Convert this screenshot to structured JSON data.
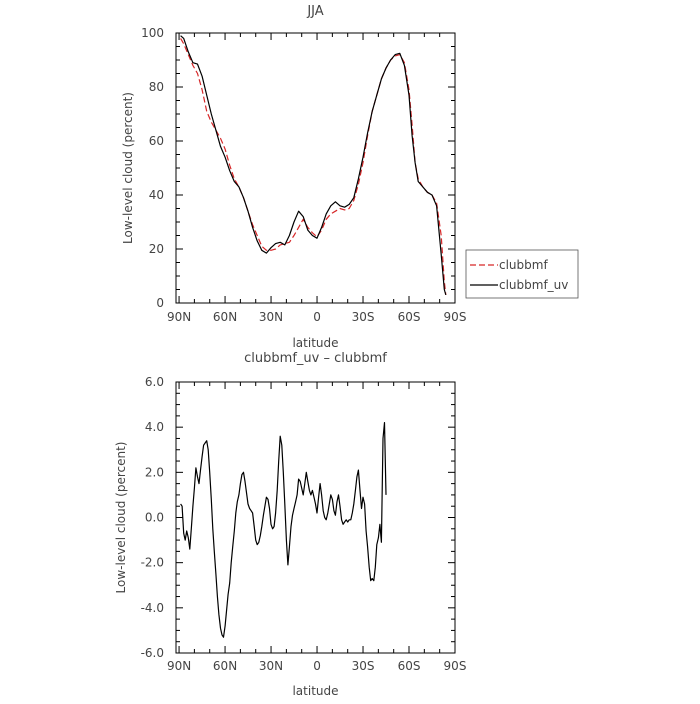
{
  "chart_data": [
    {
      "type": "line",
      "title": "JJA",
      "xlabel": "latitude",
      "ylabel": "Low-level cloud (percent)",
      "x_ticks": [
        {
          "value": -90,
          "label": "90N"
        },
        {
          "value": -60,
          "label": "60N"
        },
        {
          "value": -30,
          "label": "30N"
        },
        {
          "value": 0,
          "label": "0"
        },
        {
          "value": 30,
          "label": "30S"
        },
        {
          "value": 60,
          "label": "60S"
        },
        {
          "value": 90,
          "label": "90S"
        }
      ],
      "y_ticks": [
        {
          "value": 0,
          "label": "0"
        },
        {
          "value": 20,
          "label": "20"
        },
        {
          "value": 40,
          "label": "40"
        },
        {
          "value": 60,
          "label": "60"
        },
        {
          "value": 80,
          "label": "80"
        },
        {
          "value": 100,
          "label": "100"
        }
      ],
      "xlim": [
        -92,
        90
      ],
      "ylim": [
        0,
        100
      ],
      "legend_position": "right-outside",
      "series": [
        {
          "name": "clubbmf",
          "color": "#d62728",
          "dash": "dashed",
          "points": [
            [
              -89,
              98
            ],
            [
              -87,
              96
            ],
            [
              -84,
              92
            ],
            [
              -81,
              88
            ],
            [
              -78,
              85
            ],
            [
              -75,
              79
            ],
            [
              -72,
              71
            ],
            [
              -69,
              67
            ],
            [
              -66,
              64
            ],
            [
              -63,
              61
            ],
            [
              -60,
              57
            ],
            [
              -57,
              51
            ],
            [
              -54,
              46
            ],
            [
              -51,
              43
            ],
            [
              -48,
              39
            ],
            [
              -45,
              34
            ],
            [
              -42,
              29
            ],
            [
              -39,
              25
            ],
            [
              -36,
              21
            ],
            [
              -33,
              19.5
            ],
            [
              -30,
              19.5
            ],
            [
              -27,
              20
            ],
            [
              -24,
              21.5
            ],
            [
              -21,
              22
            ],
            [
              -18,
              22.5
            ],
            [
              -15,
              25
            ],
            [
              -12,
              28
            ],
            [
              -9,
              31
            ],
            [
              -6,
              28
            ],
            [
              -3,
              26
            ],
            [
              0,
              24.5
            ],
            [
              3,
              27
            ],
            [
              6,
              31
            ],
            [
              9,
              33
            ],
            [
              12,
              34
            ],
            [
              15,
              35
            ],
            [
              18,
              34.5
            ],
            [
              21,
              35
            ],
            [
              24,
              38
            ],
            [
              27,
              44
            ],
            [
              30,
              52
            ],
            [
              33,
              62
            ],
            [
              36,
              71
            ],
            [
              39,
              77
            ],
            [
              42,
              83
            ],
            [
              45,
              87
            ],
            [
              48,
              90
            ],
            [
              51,
              91.5
            ],
            [
              54,
              92
            ],
            [
              57,
              89
            ],
            [
              60,
              79
            ],
            [
              62,
              66
            ],
            [
              64,
              52
            ],
            [
              66,
              46
            ],
            [
              69,
              43
            ],
            [
              72,
              41
            ],
            [
              75,
              40
            ],
            [
              78,
              37
            ],
            [
              81,
              25
            ],
            [
              83,
              8
            ],
            [
              84,
              3
            ]
          ]
        },
        {
          "name": "clubbmf_uv",
          "color": "#000000",
          "dash": "solid",
          "points": [
            [
              -89,
              99
            ],
            [
              -87,
              98
            ],
            [
              -84,
              93
            ],
            [
              -81,
              89
            ],
            [
              -78,
              88.5
            ],
            [
              -75,
              84
            ],
            [
              -72,
              77
            ],
            [
              -69,
              70
            ],
            [
              -66,
              64
            ],
            [
              -63,
              58
            ],
            [
              -60,
              54
            ],
            [
              -57,
              49
            ],
            [
              -54,
              45
            ],
            [
              -51,
              43
            ],
            [
              -48,
              39
            ],
            [
              -45,
              34
            ],
            [
              -42,
              28
            ],
            [
              -39,
              23
            ],
            [
              -36,
              19.5
            ],
            [
              -33,
              18.5
            ],
            [
              -30,
              20.5
            ],
            [
              -27,
              22
            ],
            [
              -24,
              22.5
            ],
            [
              -21,
              21.5
            ],
            [
              -18,
              25
            ],
            [
              -15,
              30
            ],
            [
              -12,
              34
            ],
            [
              -9,
              32
            ],
            [
              -6,
              27
            ],
            [
              -3,
              25
            ],
            [
              0,
              24
            ],
            [
              3,
              28
            ],
            [
              6,
              33
            ],
            [
              9,
              36
            ],
            [
              12,
              37.5
            ],
            [
              15,
              36
            ],
            [
              18,
              35.5
            ],
            [
              21,
              36.5
            ],
            [
              24,
              39
            ],
            [
              27,
              46
            ],
            [
              30,
              54
            ],
            [
              33,
              63
            ],
            [
              36,
              71
            ],
            [
              39,
              77
            ],
            [
              42,
              83
            ],
            [
              45,
              87
            ],
            [
              48,
              90
            ],
            [
              51,
              92
            ],
            [
              54,
              92.5
            ],
            [
              57,
              88
            ],
            [
              60,
              77
            ],
            [
              62,
              62
            ],
            [
              64,
              52
            ],
            [
              66,
              45
            ],
            [
              69,
              43
            ],
            [
              72,
              41
            ],
            [
              75,
              40
            ],
            [
              78,
              36
            ],
            [
              81,
              18
            ],
            [
              83,
              5
            ],
            [
              84,
              3
            ]
          ]
        }
      ]
    },
    {
      "type": "line",
      "title": "clubbmf_uv – clubbmf",
      "xlabel": "latitude",
      "ylabel": "Low-level cloud (percent)",
      "x_ticks": [
        {
          "value": -90,
          "label": "90N"
        },
        {
          "value": -60,
          "label": "60N"
        },
        {
          "value": -30,
          "label": "30N"
        },
        {
          "value": 0,
          "label": "0"
        },
        {
          "value": 30,
          "label": "30S"
        },
        {
          "value": 60,
          "label": "60S"
        },
        {
          "value": 90,
          "label": "90S"
        }
      ],
      "y_ticks": [
        {
          "value": -6,
          "label": "-6.0"
        },
        {
          "value": -4,
          "label": "-4.0"
        },
        {
          "value": -2,
          "label": "-2.0"
        },
        {
          "value": 0,
          "label": "0.0"
        },
        {
          "value": 2,
          "label": "2.0"
        },
        {
          "value": 4,
          "label": "4.0"
        },
        {
          "value": 6,
          "label": "6.0"
        }
      ],
      "xlim": [
        -92,
        90
      ],
      "ylim": [
        -6,
        6
      ],
      "series": [
        {
          "color": "#000000",
          "dash": "solid",
          "points": [
            [
              -89,
              0.6
            ],
            [
              -88,
              0.5
            ],
            [
              -87,
              -0.7
            ],
            [
              -86,
              -1.0
            ],
            [
              -85,
              -0.6
            ],
            [
              -84,
              -0.9
            ],
            [
              -83,
              -1.4
            ],
            [
              -82,
              -0.5
            ],
            [
              -81,
              0.5
            ],
            [
              -80,
              1.3
            ],
            [
              -79,
              2.2
            ],
            [
              -78,
              1.8
            ],
            [
              -77,
              1.5
            ],
            [
              -76,
              2.1
            ],
            [
              -75,
              2.7
            ],
            [
              -74,
              3.2
            ],
            [
              -73,
              3.3
            ],
            [
              -72,
              3.4
            ],
            [
              -71,
              3.0
            ],
            [
              -70,
              2.0
            ],
            [
              -69,
              0.8
            ],
            [
              -68,
              -0.5
            ],
            [
              -67,
              -1.5
            ],
            [
              -66,
              -2.5
            ],
            [
              -65,
              -3.5
            ],
            [
              -64,
              -4.3
            ],
            [
              -63,
              -4.9
            ],
            [
              -62,
              -5.2
            ],
            [
              -61,
              -5.3
            ],
            [
              -60,
              -4.8
            ],
            [
              -59,
              -4.1
            ],
            [
              -58,
              -3.4
            ],
            [
              -57,
              -2.9
            ],
            [
              -56,
              -2.0
            ],
            [
              -55,
              -1.3
            ],
            [
              -54,
              -0.6
            ],
            [
              -53,
              0.2
            ],
            [
              -52,
              0.7
            ],
            [
              -51,
              1.0
            ],
            [
              -50,
              1.5
            ],
            [
              -49,
              1.9
            ],
            [
              -48,
              2.0
            ],
            [
              -47,
              1.6
            ],
            [
              -46,
              1.1
            ],
            [
              -45,
              0.6
            ],
            [
              -44,
              0.4
            ],
            [
              -43,
              0.3
            ],
            [
              -42,
              0.2
            ],
            [
              -41,
              -0.4
            ],
            [
              -40,
              -1.0
            ],
            [
              -39,
              -1.2
            ],
            [
              -38,
              -1.1
            ],
            [
              -37,
              -0.8
            ],
            [
              -36,
              -0.4
            ],
            [
              -35,
              0.1
            ],
            [
              -34,
              0.5
            ],
            [
              -33,
              0.9
            ],
            [
              -32,
              0.8
            ],
            [
              -31,
              0.4
            ],
            [
              -30,
              -0.3
            ],
            [
              -29,
              -0.5
            ],
            [
              -28,
              -0.4
            ],
            [
              -27,
              0.2
            ],
            [
              -26,
              1.2
            ],
            [
              -25,
              2.5
            ],
            [
              -24,
              3.6
            ],
            [
              -23,
              3.2
            ],
            [
              -22,
              2.0
            ],
            [
              -21,
              0.6
            ],
            [
              -20,
              -1.0
            ],
            [
              -19,
              -2.1
            ],
            [
              -18,
              -1.3
            ],
            [
              -17,
              -0.4
            ],
            [
              -16,
              0.1
            ],
            [
              -15,
              0.4
            ],
            [
              -14,
              0.7
            ],
            [
              -13,
              1.0
            ],
            [
              -12,
              1.7
            ],
            [
              -11,
              1.6
            ],
            [
              -10,
              1.3
            ],
            [
              -9,
              1.0
            ],
            [
              -8,
              1.5
            ],
            [
              -7,
              2.0
            ],
            [
              -6,
              1.6
            ],
            [
              -5,
              1.2
            ],
            [
              -4,
              1.0
            ],
            [
              -3,
              1.2
            ],
            [
              -2,
              0.9
            ],
            [
              -1,
              0.6
            ],
            [
              0,
              0.2
            ],
            [
              1,
              0.9
            ],
            [
              2,
              1.5
            ],
            [
              3,
              1.0
            ],
            [
              4,
              0.3
            ],
            [
              5,
              0.0
            ],
            [
              6,
              -0.1
            ],
            [
              7,
              0.2
            ],
            [
              8,
              0.6
            ],
            [
              9,
              1.0
            ],
            [
              10,
              0.8
            ],
            [
              11,
              0.3
            ],
            [
              12,
              0.1
            ],
            [
              13,
              0.7
            ],
            [
              14,
              1.0
            ],
            [
              15,
              0.5
            ],
            [
              16,
              -0.1
            ],
            [
              17,
              -0.3
            ],
            [
              18,
              -0.2
            ],
            [
              19,
              -0.1
            ],
            [
              20,
              -0.2
            ],
            [
              21,
              -0.1
            ],
            [
              22,
              -0.1
            ],
            [
              23,
              0.2
            ],
            [
              24,
              0.6
            ],
            [
              25,
              1.2
            ],
            [
              26,
              1.8
            ],
            [
              27,
              2.1
            ],
            [
              28,
              1.2
            ],
            [
              29,
              0.4
            ],
            [
              30,
              0.9
            ],
            [
              31,
              0.6
            ],
            [
              32,
              -0.6
            ],
            [
              33,
              -1.3
            ],
            [
              34,
              -2.2
            ],
            [
              35,
              -2.8
            ],
            [
              36,
              -2.7
            ],
            [
              37,
              -2.8
            ],
            [
              38,
              -2.2
            ],
            [
              39,
              -1.2
            ],
            [
              40,
              -0.9
            ],
            [
              41,
              -0.3
            ],
            [
              42,
              -1.1
            ],
            [
              43,
              3.5
            ],
            [
              44,
              4.2
            ],
            [
              45,
              1.0
            ]
          ]
        }
      ]
    }
  ]
}
